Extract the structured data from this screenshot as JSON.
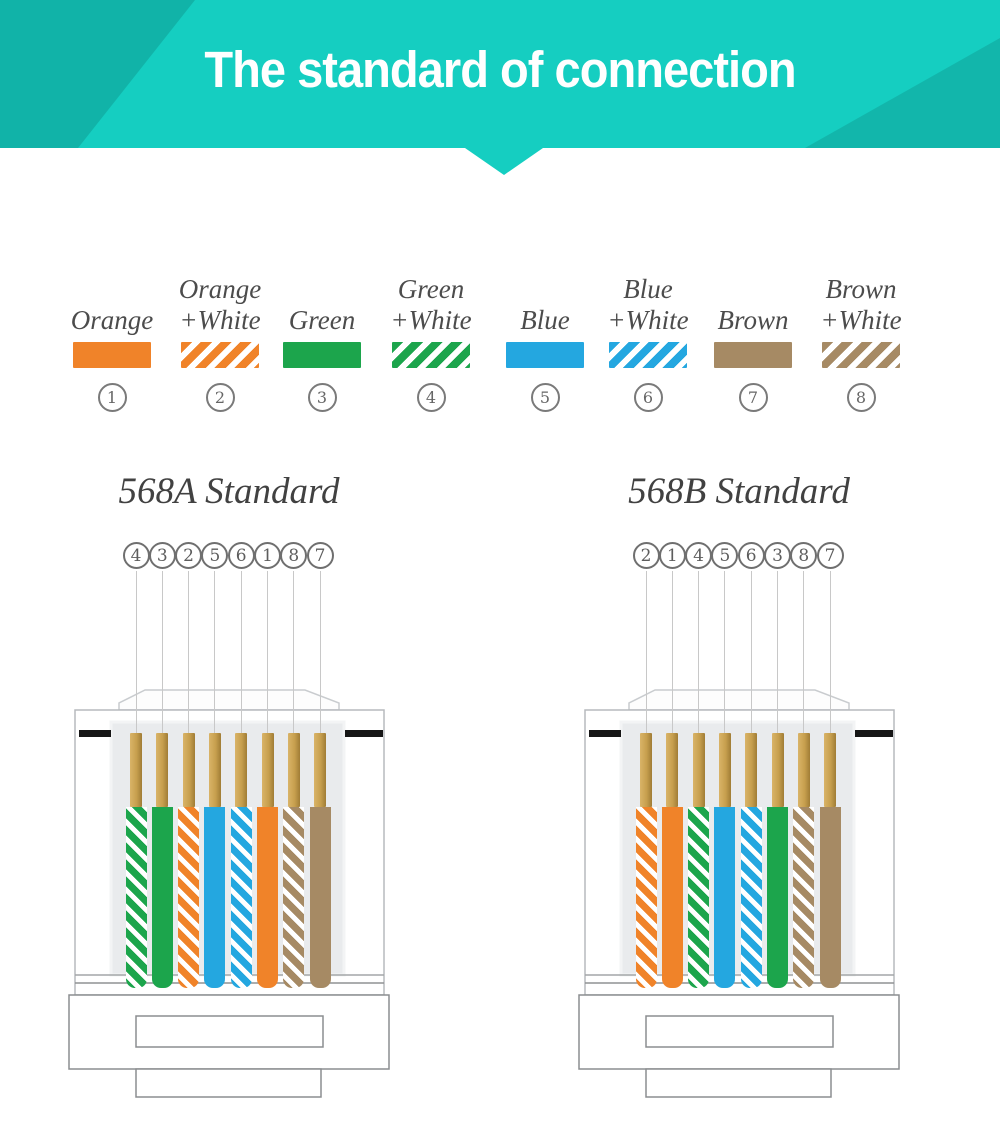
{
  "header": {
    "title": "The standard of connection"
  },
  "legend": {
    "items": [
      {
        "number": "1",
        "label_lines": [
          "Orange"
        ],
        "color_key": "orange",
        "striped": false
      },
      {
        "number": "2",
        "label_lines": [
          "Orange",
          "+White"
        ],
        "color_key": "orange",
        "striped": true
      },
      {
        "number": "3",
        "label_lines": [
          "Green"
        ],
        "color_key": "green",
        "striped": false
      },
      {
        "number": "4",
        "label_lines": [
          "Green",
          "+White"
        ],
        "color_key": "green",
        "striped": true
      },
      {
        "number": "5",
        "label_lines": [
          "Blue"
        ],
        "color_key": "blue",
        "striped": false
      },
      {
        "number": "6",
        "label_lines": [
          "Blue",
          "+White"
        ],
        "color_key": "blue",
        "striped": true
      },
      {
        "number": "7",
        "label_lines": [
          "Brown"
        ],
        "color_key": "brown",
        "striped": false
      },
      {
        "number": "8",
        "label_lines": [
          "Brown",
          "+White"
        ],
        "color_key": "brown",
        "striped": true
      }
    ]
  },
  "standards": [
    {
      "title": "568A Standard",
      "pin_order": [
        "4",
        "3",
        "2",
        "5",
        "6",
        "1",
        "8",
        "7"
      ],
      "wires": [
        "green-white",
        "green",
        "orange-white",
        "blue",
        "blue-white",
        "orange",
        "brown-white",
        "brown"
      ]
    },
    {
      "title": "568B Standard",
      "pin_order": [
        "2",
        "1",
        "4",
        "5",
        "6",
        "3",
        "8",
        "7"
      ],
      "wires": [
        "orange-white",
        "orange",
        "green-white",
        "blue",
        "blue-white",
        "green",
        "brown-white",
        "brown"
      ]
    }
  ],
  "colors": {
    "orange": "#F08329",
    "green": "#1CA54C",
    "blue": "#24A7E0",
    "brown": "#A68A64",
    "pin_gold": "#C79F4E",
    "banner_teal": "#15CEC1",
    "banner_teal_dark": "#11B3A8",
    "title_text": "#FFFFFF"
  }
}
